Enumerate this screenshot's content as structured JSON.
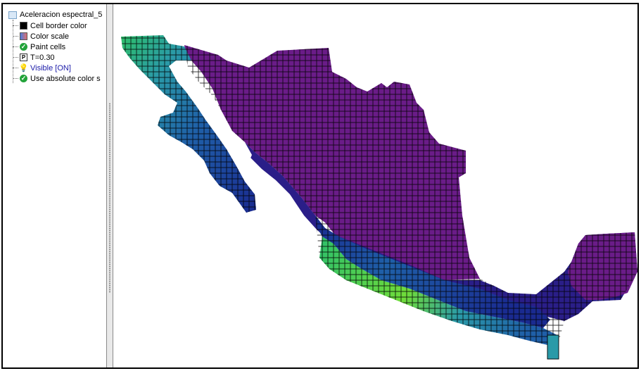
{
  "tree": {
    "root_label": "Aceleracion espectral_5",
    "items": [
      {
        "icon": "cell-border-color-icon",
        "label": "Cell border color"
      },
      {
        "icon": "color-scale-icon",
        "label": "Color scale"
      },
      {
        "icon": "check-icon",
        "label": "Paint cells"
      },
      {
        "icon": "parameter-icon",
        "label": "T=0.30"
      },
      {
        "icon": "lightbulb-icon",
        "label": "Visible [ON]"
      },
      {
        "icon": "check-icon",
        "label": "Use absolute color s"
      }
    ]
  },
  "colors": {
    "link": "#1a1aa8",
    "cell_border": "#000000",
    "scale": [
      "#7a1a8a",
      "#5a1a86",
      "#3a1e88",
      "#1a2a90",
      "#1f5fa8",
      "#2a9aa8",
      "#2ec06a",
      "#8ee63a"
    ]
  }
}
